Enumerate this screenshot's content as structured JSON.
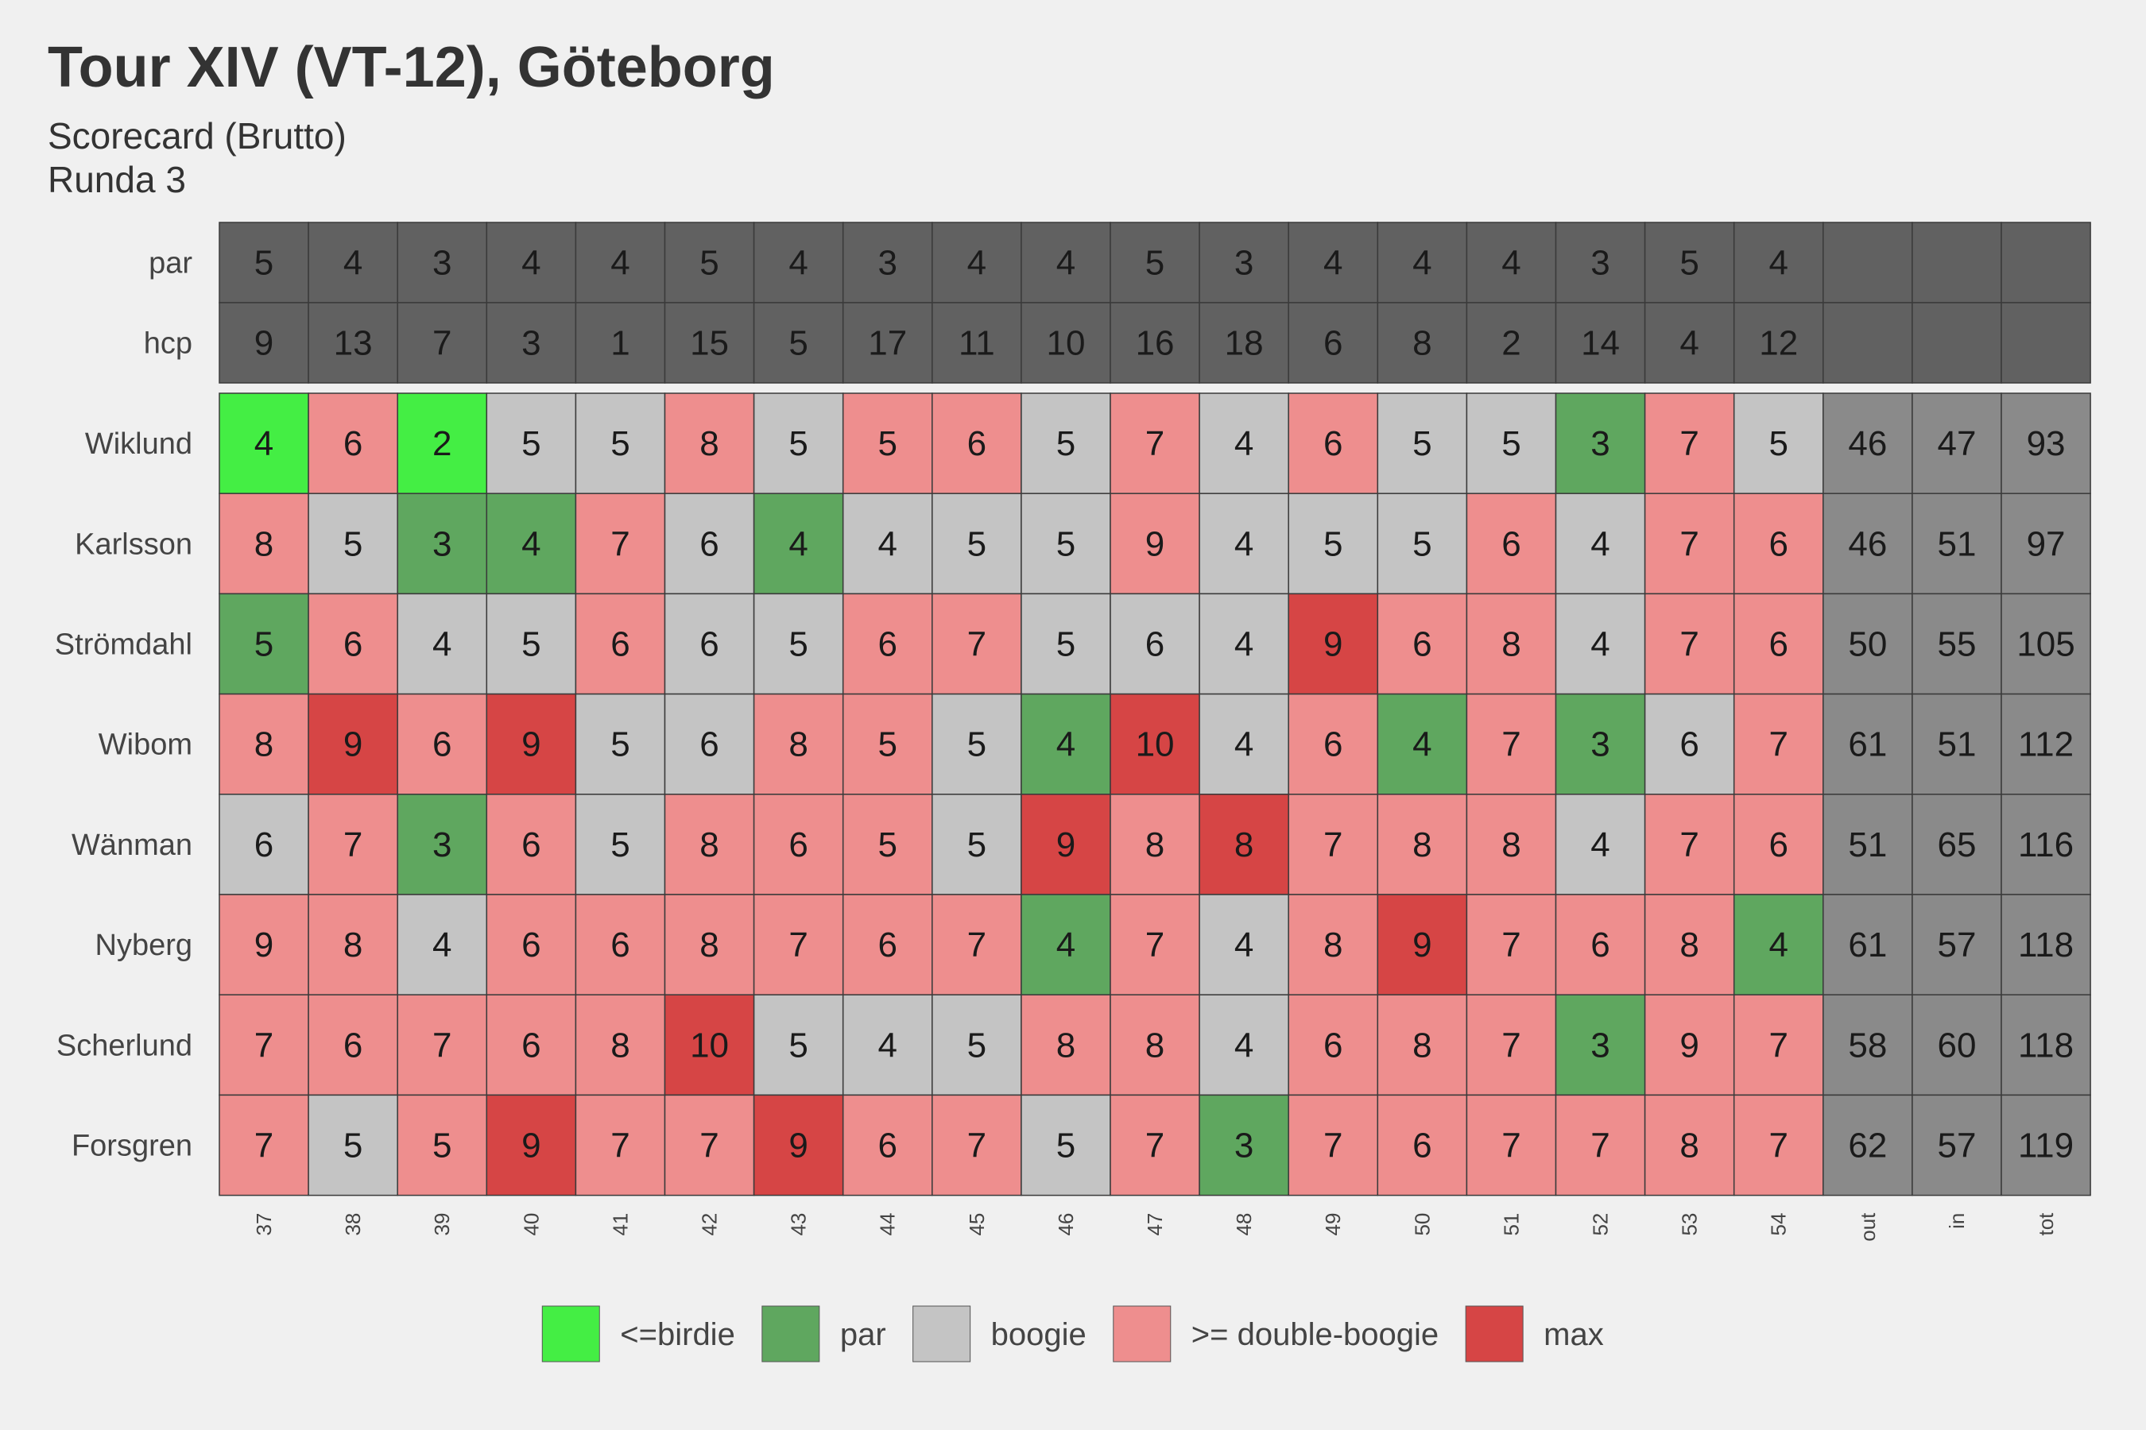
{
  "title": "Tour XIV (VT-12), Göteborg",
  "subtitle_line1": "Scorecard (Brutto)",
  "subtitle_line2": "Runda 3",
  "colors": {
    "background": "#f0f0f0",
    "header_cell": "#616161",
    "total_cell": "#8a8a8a",
    "<=birdie": "#44ee44",
    "par": "#5fa75f",
    "boogie": "#c4c4c4",
    ">= double-boogie": "#ee8e8e",
    "max": "#d64545"
  },
  "chart_data": {
    "type": "heatmap",
    "title": "Tour XIV (VT-12), Göteborg",
    "subtitle": "Scorecard (Brutto) / Runda 3",
    "columns": [
      "37",
      "38",
      "39",
      "40",
      "41",
      "42",
      "43",
      "44",
      "45",
      "46",
      "47",
      "48",
      "49",
      "50",
      "51",
      "52",
      "53",
      "54",
      "out",
      "in",
      "tot"
    ],
    "header_rows": [
      {
        "label": "par",
        "values": [
          5,
          4,
          3,
          4,
          4,
          5,
          4,
          3,
          4,
          4,
          5,
          3,
          4,
          4,
          4,
          3,
          5,
          4
        ]
      },
      {
        "label": "hcp",
        "values": [
          9,
          13,
          7,
          3,
          1,
          15,
          5,
          17,
          11,
          10,
          16,
          18,
          6,
          8,
          2,
          14,
          4,
          12
        ]
      }
    ],
    "players": [
      {
        "name": "Wiklund",
        "scores": [
          4,
          6,
          2,
          5,
          5,
          8,
          5,
          5,
          6,
          5,
          7,
          4,
          6,
          5,
          5,
          3,
          7,
          5
        ],
        "categories": [
          "<=birdie",
          ">= double-boogie",
          "<=birdie",
          "boogie",
          "boogie",
          ">= double-boogie",
          "boogie",
          ">= double-boogie",
          ">= double-boogie",
          "boogie",
          ">= double-boogie",
          "boogie",
          ">= double-boogie",
          "boogie",
          "boogie",
          "par",
          ">= double-boogie",
          "boogie"
        ],
        "out": 46,
        "in": 47,
        "tot": 93
      },
      {
        "name": "Karlsson",
        "scores": [
          8,
          5,
          3,
          4,
          7,
          6,
          4,
          4,
          5,
          5,
          9,
          4,
          5,
          5,
          6,
          4,
          7,
          6
        ],
        "categories": [
          ">= double-boogie",
          "boogie",
          "par",
          "par",
          ">= double-boogie",
          "boogie",
          "par",
          "boogie",
          "boogie",
          "boogie",
          ">= double-boogie",
          "boogie",
          "boogie",
          "boogie",
          ">= double-boogie",
          "boogie",
          ">= double-boogie",
          ">= double-boogie"
        ],
        "out": 46,
        "in": 51,
        "tot": 97
      },
      {
        "name": "Strömdahl",
        "scores": [
          5,
          6,
          4,
          5,
          6,
          6,
          5,
          6,
          7,
          5,
          6,
          4,
          9,
          6,
          8,
          4,
          7,
          6
        ],
        "categories": [
          "par",
          ">= double-boogie",
          "boogie",
          "boogie",
          ">= double-boogie",
          "boogie",
          "boogie",
          ">= double-boogie",
          ">= double-boogie",
          "boogie",
          "boogie",
          "boogie",
          "max",
          ">= double-boogie",
          ">= double-boogie",
          "boogie",
          ">= double-boogie",
          ">= double-boogie"
        ],
        "out": 50,
        "in": 55,
        "tot": 105
      },
      {
        "name": "Wibom",
        "scores": [
          8,
          9,
          6,
          9,
          5,
          6,
          8,
          5,
          5,
          4,
          10,
          4,
          6,
          4,
          7,
          3,
          6,
          7
        ],
        "categories": [
          ">= double-boogie",
          "max",
          ">= double-boogie",
          "max",
          "boogie",
          "boogie",
          ">= double-boogie",
          ">= double-boogie",
          "boogie",
          "par",
          "max",
          "boogie",
          ">= double-boogie",
          "par",
          ">= double-boogie",
          "par",
          "boogie",
          ">= double-boogie"
        ],
        "out": 61,
        "in": 51,
        "tot": 112
      },
      {
        "name": "Wänman",
        "scores": [
          6,
          7,
          3,
          6,
          5,
          8,
          6,
          5,
          5,
          9,
          8,
          8,
          7,
          8,
          8,
          4,
          7,
          6
        ],
        "categories": [
          "boogie",
          ">= double-boogie",
          "par",
          ">= double-boogie",
          "boogie",
          ">= double-boogie",
          ">= double-boogie",
          ">= double-boogie",
          "boogie",
          "max",
          ">= double-boogie",
          "max",
          ">= double-boogie",
          ">= double-boogie",
          ">= double-boogie",
          "boogie",
          ">= double-boogie",
          ">= double-boogie"
        ],
        "out": 51,
        "in": 65,
        "tot": 116
      },
      {
        "name": "Nyberg",
        "scores": [
          9,
          8,
          4,
          6,
          6,
          8,
          7,
          6,
          7,
          4,
          7,
          4,
          8,
          9,
          7,
          6,
          8,
          4
        ],
        "categories": [
          ">= double-boogie",
          ">= double-boogie",
          "boogie",
          ">= double-boogie",
          ">= double-boogie",
          ">= double-boogie",
          ">= double-boogie",
          ">= double-boogie",
          ">= double-boogie",
          "par",
          ">= double-boogie",
          "boogie",
          ">= double-boogie",
          "max",
          ">= double-boogie",
          ">= double-boogie",
          ">= double-boogie",
          "par"
        ],
        "out": 61,
        "in": 57,
        "tot": 118
      },
      {
        "name": "Scherlund",
        "scores": [
          7,
          6,
          7,
          6,
          8,
          10,
          5,
          4,
          5,
          8,
          8,
          4,
          6,
          8,
          7,
          3,
          9,
          7
        ],
        "categories": [
          ">= double-boogie",
          ">= double-boogie",
          ">= double-boogie",
          ">= double-boogie",
          ">= double-boogie",
          "max",
          "boogie",
          "boogie",
          "boogie",
          ">= double-boogie",
          ">= double-boogie",
          "boogie",
          ">= double-boogie",
          ">= double-boogie",
          ">= double-boogie",
          "par",
          ">= double-boogie",
          ">= double-boogie"
        ],
        "out": 58,
        "in": 60,
        "tot": 118
      },
      {
        "name": "Forsgren",
        "scores": [
          7,
          5,
          5,
          9,
          7,
          7,
          9,
          6,
          7,
          5,
          7,
          3,
          7,
          6,
          7,
          7,
          8,
          7
        ],
        "categories": [
          ">= double-boogie",
          "boogie",
          ">= double-boogie",
          "max",
          ">= double-boogie",
          ">= double-boogie",
          "max",
          ">= double-boogie",
          ">= double-boogie",
          "boogie",
          ">= double-boogie",
          "par",
          ">= double-boogie",
          ">= double-boogie",
          ">= double-boogie",
          ">= double-boogie",
          ">= double-boogie",
          ">= double-boogie"
        ],
        "out": 62,
        "in": 57,
        "tot": 119
      }
    ],
    "legend": [
      "<=birdie",
      "par",
      "boogie",
      ">= double-boogie",
      "max"
    ],
    "legend_position": "bottom"
  }
}
